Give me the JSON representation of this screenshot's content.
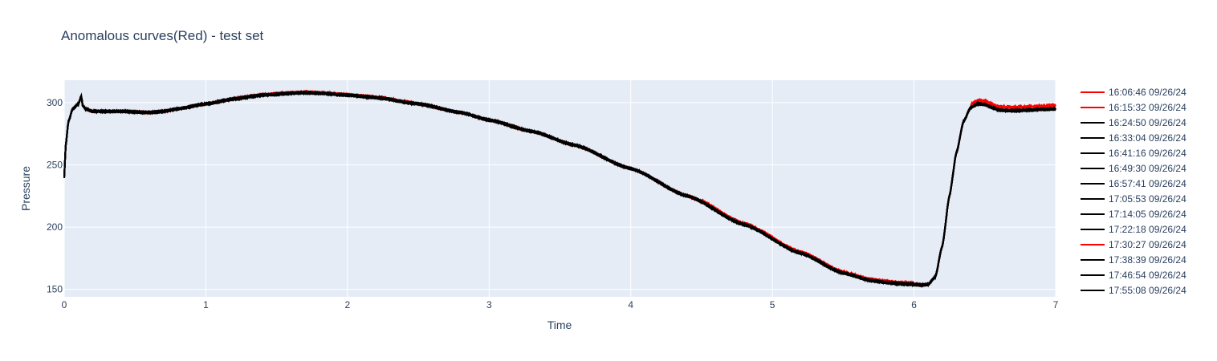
{
  "chart_data": {
    "type": "line",
    "title": "Anomalous curves(Red) - test set",
    "xlabel": "Time",
    "ylabel": "Pressure",
    "xlim": [
      0,
      7
    ],
    "ylim": [
      144,
      318
    ],
    "xticks": [
      0,
      1,
      2,
      3,
      4,
      5,
      6,
      7
    ],
    "yticks": [
      150,
      200,
      250,
      300
    ],
    "grid": true,
    "legend_position": "right",
    "base_curve": {
      "x": [
        0,
        0.01,
        0.03,
        0.06,
        0.1,
        0.12,
        0.13,
        0.15,
        0.2,
        0.4,
        0.6,
        0.7,
        0.8,
        1.0,
        1.2,
        1.4,
        1.6,
        1.7,
        1.8,
        2.0,
        2.2,
        2.5,
        2.8,
        3.0,
        3.3,
        3.6,
        4.0,
        4.4,
        4.8,
        5.2,
        5.5,
        5.7,
        5.8,
        5.9,
        6.0,
        6.05,
        6.1,
        6.15,
        6.2,
        6.25,
        6.3,
        6.35,
        6.4,
        6.45,
        6.5,
        6.55,
        6.6,
        6.7,
        6.8,
        6.9,
        7.0
      ],
      "y": [
        240,
        265,
        285,
        295,
        299,
        305,
        298,
        295,
        293,
        293,
        292,
        293,
        295,
        299,
        303,
        306,
        307.5,
        308,
        307.5,
        306,
        304,
        299,
        292,
        286,
        277,
        266,
        247,
        225,
        202,
        179,
        163,
        157,
        155.5,
        154.5,
        154,
        153.5,
        154,
        160,
        185,
        225,
        260,
        285,
        296,
        299,
        298.5,
        296,
        294,
        293.5,
        294,
        294.5,
        295
      ]
    },
    "series": [
      {
        "name": "16:06:46 09/26/24",
        "color": "#ff0000",
        "anomalous": true
      },
      {
        "name": "16:15:32 09/26/24",
        "color": "#ff0000",
        "anomalous": true
      },
      {
        "name": "16:24:50 09/26/24",
        "color": "#000000",
        "anomalous": false
      },
      {
        "name": "16:33:04 09/26/24",
        "color": "#000000",
        "anomalous": false
      },
      {
        "name": "16:41:16 09/26/24",
        "color": "#000000",
        "anomalous": false
      },
      {
        "name": "16:49:30 09/26/24",
        "color": "#000000",
        "anomalous": false
      },
      {
        "name": "16:57:41 09/26/24",
        "color": "#000000",
        "anomalous": false
      },
      {
        "name": "17:05:53 09/26/24",
        "color": "#000000",
        "anomalous": false
      },
      {
        "name": "17:14:05 09/26/24",
        "color": "#000000",
        "anomalous": false
      },
      {
        "name": "17:22:18 09/26/24",
        "color": "#000000",
        "anomalous": false
      },
      {
        "name": "17:30:27 09/26/24",
        "color": "#ff0000",
        "anomalous": true
      },
      {
        "name": "17:38:39 09/26/24",
        "color": "#000000",
        "anomalous": false
      },
      {
        "name": "17:46:54 09/26/24",
        "color": "#000000",
        "anomalous": false
      },
      {
        "name": "17:55:08 09/26/24",
        "color": "#000000",
        "anomalous": false
      }
    ]
  }
}
